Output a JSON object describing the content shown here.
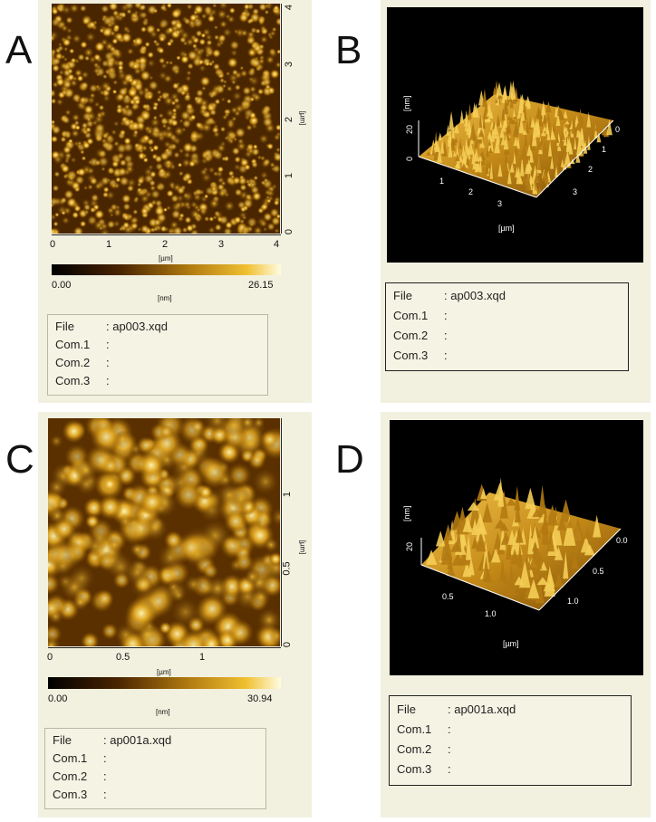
{
  "panels": {
    "A": {
      "letter": "A",
      "x_ticks": [
        "0",
        "1",
        "2",
        "3",
        "4"
      ],
      "y_ticks": [
        "0",
        "1",
        "2",
        "3",
        "4"
      ],
      "x_unit": "[µm]",
      "y_unit": "[µm]",
      "cbar_min": "0.00",
      "cbar_max": "26.15",
      "cbar_unit": "[nm]",
      "info": {
        "file_label": "File",
        "file_value": ": ap003.xqd",
        "com1": "Com.1",
        "com2": "Com.2",
        "com3": "Com.3",
        "sep": ":"
      }
    },
    "B": {
      "letter": "B",
      "z_unit": "[nm]",
      "z_ticks": [
        "20",
        "0"
      ],
      "front_ticks": [
        "1",
        "2",
        "3"
      ],
      "side_ticks": [
        "0",
        "1",
        "2",
        "3"
      ],
      "xy_unit": "[µm]",
      "info": {
        "file_label": "File",
        "file_value": ": ap003.xqd",
        "com1": "Com.1",
        "com2": "Com.2",
        "com3": "Com.3",
        "sep": ":"
      }
    },
    "C": {
      "letter": "C",
      "x_ticks": [
        "0",
        "0.5",
        "1"
      ],
      "y_ticks": [
        "0",
        "0.5",
        "1"
      ],
      "x_unit": "[µm]",
      "y_unit": "[µm]",
      "cbar_min": "0.00",
      "cbar_max": "30.94",
      "cbar_unit": "[nm]",
      "info": {
        "file_label": "File",
        "file_value": ": ap001a.xqd",
        "com1": "Com.1",
        "com2": "Com.2",
        "com3": "Com.3",
        "sep": ":"
      }
    },
    "D": {
      "letter": "D",
      "z_unit": "[nm]",
      "z_ticks": [
        "20"
      ],
      "front_ticks": [
        "0.5",
        "1.0"
      ],
      "side_ticks": [
        "0.0",
        "0.5",
        "1.0"
      ],
      "xy_unit": "[µm]",
      "info": {
        "file_label": "File",
        "file_value": ": ap001a.xqd",
        "com1": "Com.1",
        "com2": "Com.2",
        "com3": "Com.3",
        "sep": ":"
      }
    }
  },
  "colors": {
    "afm_dark": "#2a1300",
    "afm_mid": "#b8860b",
    "afm_bright": "#fff2a0",
    "panel_bg": "#f2f0df"
  }
}
